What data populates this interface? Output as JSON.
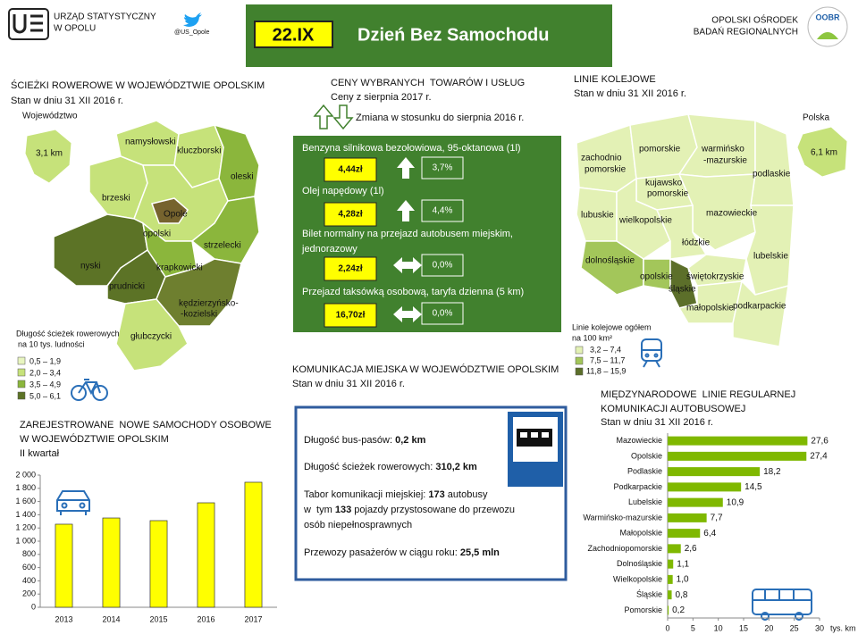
{
  "header": {
    "left_org": [
      "URZĄD STATYSTYCZNY",
      "W OPOLU"
    ],
    "twitter": "@US_Opole",
    "date": "22.IX",
    "title": "Dzień Bez Samochodu",
    "right_org": [
      "OPOLSKI OŚRODEK",
      "BADAŃ REGIONALNYCH"
    ],
    "right_logo": "OOBR"
  },
  "bike_map": {
    "title": "ŚCIEŻKI ROWEROWE W WOJEWÓDZTWIE OPOLSKIM",
    "subtitle": "Stan w dniu 31 XII 2016 r.",
    "region_label": "Województwo",
    "region_value": "3,1 km",
    "districts": [
      "namysłowski",
      "kluczborski",
      "oleski",
      "brzeski",
      "Opole",
      "opolski",
      "strzelecki",
      "nyski",
      "krapkowicki",
      "prudnicki",
      [
        "kędzierzyńsko-",
        "-kozielski"
      ],
      "głubczycki"
    ],
    "legend_title": [
      "Długość ścieżek rowerowych",
      "na 10 tys. ludności"
    ],
    "legend": [
      "0,5 – 1,9",
      "2,0 – 3,4",
      "3,5 – 4,9",
      "5,0 – 6,1"
    ]
  },
  "prices": {
    "title": "CENY WYBRANYCH  TOWARÓW I USŁUG",
    "subtitle": "Ceny z sierpnia 2017 r.",
    "change_note": "Zmiana w stosunku do sierpnia 2016 r.",
    "items": [
      {
        "name": [
          "Benzyna silnikowa bezołowiowa, 95-oktanowa (1l)"
        ],
        "price": "4,44zł",
        "change": "3,7%"
      },
      {
        "name": [
          "Olej napędowy (1l)"
        ],
        "price": "4,28zł",
        "change": "4,4%"
      },
      {
        "name": [
          "Bilet normalny na przejazd autobusem miejskim,",
          "jednorazowy"
        ],
        "price": "2,24zł",
        "change": "0,0%"
      },
      {
        "name": [
          "Przejazd taksówką osobową, taryfa dzienna (5 km)"
        ],
        "price": "16,70zł",
        "change": "0,0%"
      }
    ]
  },
  "rail_map": {
    "title": "LINIE KOLEJOWE",
    "subtitle": "Stan w dniu 31 XII 2016 r.",
    "region_label": "Polska",
    "region_value": "6,1 km",
    "voivodeships": [
      [
        "zachodnio",
        "pomorskie"
      ],
      "pomorskie",
      [
        "warmińsko",
        "-mazurskie"
      ],
      "podlaskie",
      [
        "kujawsko",
        "pomorskie"
      ],
      "lubuskie",
      "wielkopolskie",
      "mazowieckie",
      "łódzkie",
      "lubelskie",
      "dolnośląskie",
      "opolskie",
      "śląskie",
      "świętokrzyskie",
      "małopolskie",
      "podkarpackie"
    ],
    "legend_title": [
      "Linie kolejowe ogółem",
      "na 100 km²"
    ],
    "legend": [
      "3,2 – 7,4",
      "7,5 – 11,7",
      "11,8 – 15,9"
    ]
  },
  "transport": {
    "title": "KOMUNIKACJA MIEJSKA W WOJEWÓDZTWIE OPOLSKIM",
    "subtitle": "Stan w dniu 31 XII 2016 r.",
    "lines": [
      [
        "Długość bus-pasów: ",
        "0,2 km"
      ],
      [
        "Długość ścieżek rowerowych: ",
        "310,2 km"
      ],
      [
        "Tabor komunikacji miejskiej: ",
        "173",
        " autobusy"
      ],
      [
        "w  tym ",
        "133",
        " pojazdy przystosowane do przewozu"
      ],
      [
        "osób niepełnosprawnych"
      ],
      [
        "Przewozy pasażerów w ciągu roku: ",
        "25,5 mln"
      ]
    ]
  },
  "chart_data": [
    {
      "type": "bar",
      "orientation": "vertical",
      "title": [
        "ZAREJESTROWANE  NOWE SAMOCHODY OSOBOWE",
        "W WOJEWÓDZTWIE OPOLSKIM"
      ],
      "subtitle": "II kwartał",
      "categories": [
        "2013",
        "2014",
        "2015",
        "2016",
        "2017"
      ],
      "values": [
        1257,
        1351,
        1311,
        1581,
        1892
      ],
      "color": "#ffff00",
      "ylim": [
        0,
        2000
      ],
      "yticks": [
        0,
        {
          "value": 200,
          "label": "200"
        },
        {
          "value": 400,
          "label": "400"
        },
        {
          "value": 600,
          "label": "600"
        },
        {
          "value": 800,
          "label": "800"
        },
        {
          "value": 1000,
          "label": "1 000"
        },
        {
          "value": 1200,
          "label": "1 200"
        },
        {
          "value": 1400,
          "label": "1 400"
        },
        {
          "value": 1600,
          "label": "1 600"
        },
        {
          "value": 1800,
          "label": "1 800"
        },
        {
          "value": 2000,
          "label": "2 000"
        }
      ],
      "grid": false
    },
    {
      "type": "bar",
      "orientation": "horizontal",
      "title": [
        "MIĘDZYNARODOWE  LINIE REGULARNEJ",
        "KOMUNIKACJI AUTOBUSOWEJ"
      ],
      "subtitle": "Stan w dniu 31 XII 2016 r.",
      "categories": [
        "Mazowieckie",
        "Opolskie",
        "Podlaskie",
        "Podkarpackie",
        "Lubelskie",
        "Warmińsko-mazurskie",
        "Małopolskie",
        "Zachodniopomorskie",
        "Dolnośląskie",
        "Wielkopolskie",
        "Śląskie",
        "Pomorskie"
      ],
      "values": [
        27.6,
        27.4,
        18.2,
        14.5,
        10.9,
        7.7,
        6.4,
        2.6,
        1.1,
        1.0,
        0.8,
        0.2
      ],
      "value_labels": [
        "27,6",
        "27,4",
        "18,2",
        "14,5",
        "10,9",
        "7,7",
        "6,4",
        "2,6",
        "1,1",
        "1,0",
        "0,8",
        "0,2"
      ],
      "color": "#7fb800",
      "xlim": [
        0,
        30
      ],
      "xticks": [
        0,
        5,
        10,
        15,
        20,
        25,
        30
      ],
      "x_label": "tys. km",
      "grid": false
    }
  ]
}
